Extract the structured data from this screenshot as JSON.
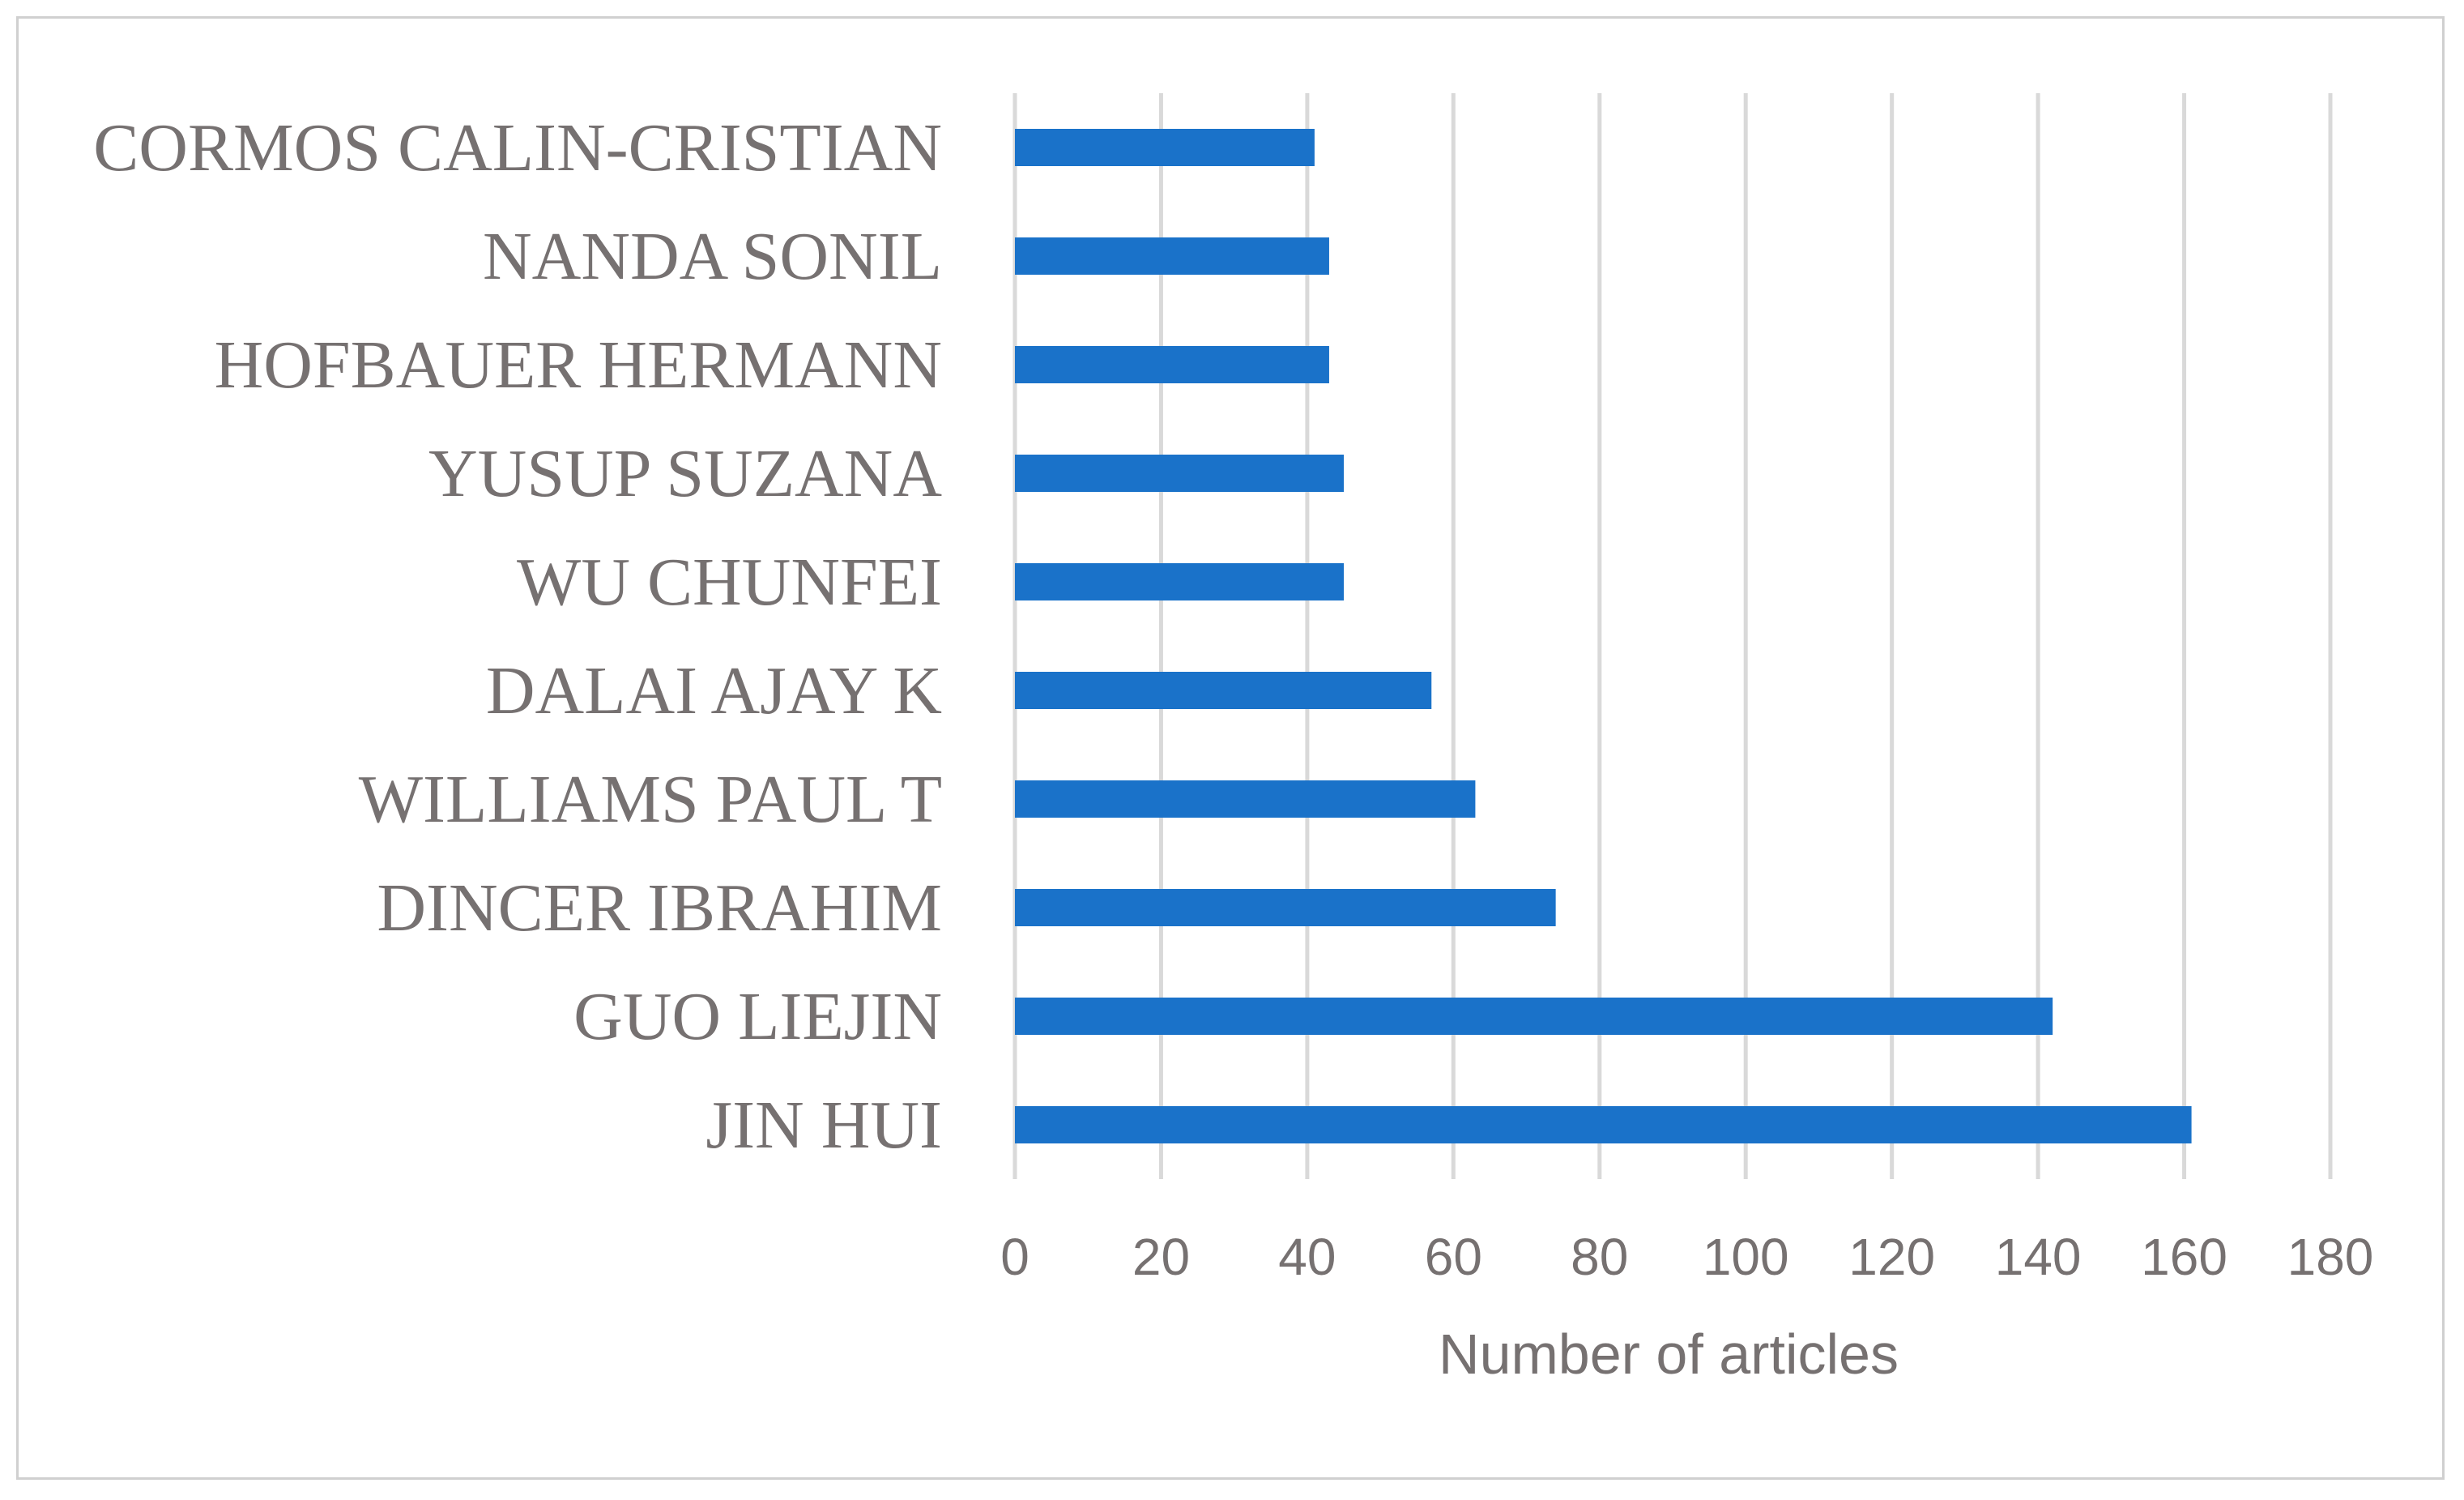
{
  "chart_data": {
    "type": "bar",
    "orientation": "horizontal",
    "categories": [
      "JIN HUI",
      "GUO LIEJIN",
      "DINCER IBRAHIM",
      "WILLIAMS PAUL T",
      "DALAI AJAY K",
      "WU CHUNFEI",
      "YUSUP SUZANA",
      "HOFBAUER HERMANN",
      "NANDA SONIL",
      "CORMOS CALIN-CRISTIAN"
    ],
    "values": [
      161,
      142,
      74,
      63,
      57,
      45,
      45,
      43,
      43,
      41
    ],
    "title": "",
    "xlabel": "Number of articles",
    "ylabel": "",
    "xlim": [
      0,
      180
    ],
    "xticks": [
      0,
      20,
      40,
      60,
      80,
      100,
      120,
      140,
      160,
      180
    ],
    "grid": "vertical",
    "legend": "none",
    "bar_color": "#1a72c9",
    "grid_color": "#d9d9d9",
    "text_color": "#767171"
  }
}
